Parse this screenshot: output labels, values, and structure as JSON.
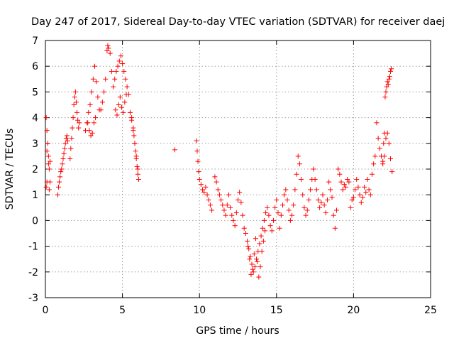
{
  "chart_data": {
    "type": "scatter",
    "title": "Day 247 of 2017, Sidereal Day-to-day VTEC variation (SDTVAR) for receiver daej",
    "xlabel": "GPS time / hours",
    "ylabel": "SDTVAR / TECUs",
    "xlim": [
      0,
      25
    ],
    "ylim": [
      -3,
      7
    ],
    "xticks": [
      "0",
      "5",
      "10",
      "15",
      "20",
      "25"
    ],
    "yticks": [
      "-3",
      "-2",
      "-1",
      "0",
      "1",
      "2",
      "3",
      "4",
      "5",
      "6",
      "7"
    ],
    "grid": true,
    "marker": "+",
    "marker_color": "#ff0000",
    "series": [
      {
        "name": "SDTVAR",
        "x": [
          0.05,
          0.1,
          0.15,
          0.2,
          0.25,
          0.3,
          0.05,
          0.1,
          0.2,
          0.3,
          0.1,
          0.25,
          0.8,
          0.85,
          0.9,
          0.95,
          1.0,
          1.05,
          1.1,
          1.15,
          1.2,
          1.25,
          1.3,
          1.35,
          1.4,
          1.45,
          1.6,
          1.65,
          1.7,
          1.75,
          1.8,
          1.85,
          1.9,
          1.95,
          2.0,
          2.05,
          2.1,
          2.15,
          2.2,
          2.6,
          2.7,
          2.8,
          2.9,
          3.0,
          3.1,
          3.2,
          3.3,
          3.4,
          3.5,
          2.75,
          2.85,
          2.95,
          3.05,
          3.15,
          3.25,
          3.6,
          3.7,
          3.8,
          3.9,
          4.0,
          4.05,
          4.1,
          4.2,
          4.3,
          4.4,
          4.5,
          4.6,
          4.7,
          4.8,
          4.9,
          5.0,
          5.1,
          5.2,
          5.3,
          5.4,
          4.55,
          4.65,
          4.75,
          4.85,
          4.95,
          5.05,
          5.15,
          5.25,
          5.5,
          5.6,
          5.7,
          5.75,
          5.8,
          5.85,
          5.9,
          5.95,
          6.0,
          6.05,
          5.6,
          5.7,
          5.8,
          5.9,
          6.0,
          8.4,
          9.8,
          9.85,
          9.9,
          9.95,
          10.0,
          10.1,
          10.2,
          10.3,
          10.4,
          10.5,
          10.6,
          10.7,
          10.8,
          11.0,
          11.1,
          11.2,
          11.3,
          11.4,
          11.5,
          11.6,
          11.7,
          11.8,
          11.9,
          12.0,
          12.1,
          12.2,
          12.3,
          12.4,
          12.5,
          12.6,
          12.7,
          12.8,
          12.9,
          13.0,
          13.1,
          13.2,
          13.3,
          13.4,
          13.5,
          13.6,
          13.7,
          13.8,
          13.9,
          14.0,
          14.1,
          14.2,
          14.3,
          14.4,
          14.5,
          13.15,
          13.25,
          13.35,
          13.45,
          13.55,
          13.65,
          13.75,
          13.85,
          13.95,
          14.05,
          14.15,
          14.25,
          14.6,
          14.7,
          14.8,
          14.9,
          15.0,
          15.1,
          15.2,
          15.3,
          15.4,
          15.5,
          15.6,
          15.7,
          15.8,
          15.9,
          16.0,
          16.1,
          16.2,
          16.3,
          16.4,
          16.5,
          16.6,
          16.7,
          16.8,
          16.9,
          17.0,
          17.1,
          17.2,
          17.3,
          17.4,
          17.5,
          17.6,
          17.7,
          17.8,
          17.9,
          18.0,
          18.1,
          18.2,
          18.3,
          18.4,
          18.5,
          18.6,
          18.7,
          18.8,
          18.9,
          19.0,
          19.1,
          19.2,
          19.3,
          19.4,
          19.5,
          19.6,
          19.7,
          19.8,
          19.9,
          20.0,
          20.1,
          20.2,
          20.3,
          20.4,
          20.5,
          20.6,
          20.7,
          20.8,
          20.9,
          21.0,
          21.1,
          21.2,
          21.3,
          21.4,
          21.5,
          21.6,
          21.7,
          21.8,
          21.9,
          21.95,
          22.0,
          22.05,
          22.1,
          22.15,
          22.2,
          22.25,
          22.3,
          22.35,
          22.4,
          22.45,
          21.9,
          22.0,
          22.1,
          22.2,
          22.3,
          22.4,
          22.5
        ],
        "y": [
          4.0,
          3.5,
          3.0,
          2.5,
          2.0,
          1.5,
          1.3,
          1.5,
          2.2,
          2.3,
          2.7,
          1.2,
          1.0,
          1.3,
          1.5,
          1.7,
          1.9,
          2.0,
          2.2,
          2.4,
          2.6,
          2.8,
          3.0,
          3.2,
          3.3,
          3.1,
          2.4,
          2.8,
          3.2,
          3.6,
          4.0,
          4.5,
          4.8,
          5.0,
          4.6,
          4.2,
          3.9,
          3.6,
          3.8,
          3.5,
          3.8,
          4.2,
          4.5,
          5.0,
          5.5,
          6.0,
          5.4,
          4.8,
          4.3,
          3.8,
          3.5,
          3.3,
          3.4,
          3.8,
          4.0,
          4.3,
          4.6,
          5.0,
          5.5,
          6.6,
          6.8,
          6.7,
          6.5,
          5.8,
          5.2,
          5.5,
          5.8,
          6.0,
          6.2,
          6.4,
          6.1,
          5.8,
          5.5,
          5.2,
          4.9,
          4.3,
          4.1,
          4.5,
          4.8,
          4.4,
          4.2,
          4.6,
          4.9,
          4.2,
          3.9,
          3.6,
          3.3,
          3.0,
          2.7,
          2.4,
          2.1,
          1.8,
          1.6,
          4.0,
          3.5,
          3.0,
          2.5,
          2.0,
          2.75,
          3.1,
          2.7,
          2.3,
          1.9,
          1.6,
          1.4,
          1.2,
          1.1,
          1.3,
          1.0,
          0.8,
          0.6,
          0.4,
          1.7,
          1.5,
          1.2,
          1.0,
          0.8,
          0.6,
          0.4,
          0.2,
          0.6,
          1.0,
          0.5,
          0.2,
          0.0,
          -0.2,
          0.3,
          0.8,
          1.1,
          0.7,
          0.2,
          -0.3,
          -0.5,
          -0.8,
          -1.1,
          -1.4,
          -1.7,
          -2.0,
          -1.8,
          -1.5,
          -1.2,
          -0.9,
          -0.6,
          -0.3,
          0.0,
          0.3,
          0.5,
          0.2,
          -1.0,
          -1.5,
          -2.1,
          -1.9,
          -1.3,
          -0.7,
          -1.6,
          -2.2,
          -1.8,
          -1.2,
          -0.8,
          -0.4,
          -0.2,
          -0.4,
          0.0,
          0.5,
          0.8,
          0.3,
          -0.3,
          0.2,
          0.6,
          1.0,
          1.2,
          0.8,
          0.4,
          0.0,
          0.2,
          0.6,
          1.2,
          1.8,
          2.5,
          2.2,
          1.6,
          1.0,
          0.5,
          0.2,
          0.4,
          0.8,
          1.2,
          1.6,
          2.0,
          1.6,
          1.2,
          0.8,
          0.5,
          0.7,
          1.0,
          0.6,
          0.3,
          0.8,
          1.5,
          1.2,
          0.9,
          0.2,
          -0.3,
          0.4,
          2.0,
          1.8,
          1.5,
          1.2,
          1.4,
          1.3,
          1.6,
          1.5,
          0.5,
          0.8,
          0.9,
          1.2,
          1.6,
          1.3,
          1.0,
          0.7,
          0.9,
          1.3,
          1.1,
          1.6,
          1.2,
          1.0,
          1.8,
          2.2,
          2.5,
          3.8,
          3.2,
          2.8,
          2.5,
          2.2,
          3.0,
          3.4,
          4.8,
          5.0,
          5.2,
          5.4,
          5.3,
          5.5,
          5.6,
          5.8,
          5.9,
          2.3,
          2.5,
          3.2,
          3.4,
          3.0,
          2.4,
          1.9
        ]
      }
    ]
  }
}
